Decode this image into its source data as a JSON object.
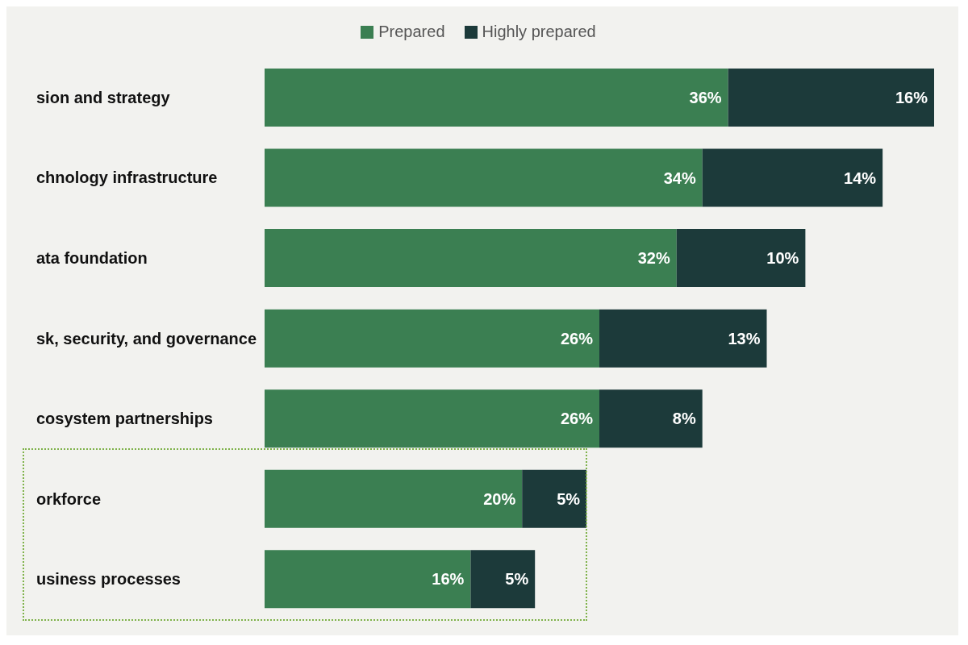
{
  "chart_data": {
    "type": "bar",
    "orientation": "horizontal",
    "stacked": true,
    "legend": "top",
    "categories": [
      "sion and strategy",
      "chnology infrastructure",
      "ata foundation",
      "sk, security, and governance",
      "cosystem partnerships",
      "orkforce",
      "usiness processes"
    ],
    "series": [
      {
        "name": "Prepared",
        "color": "#3b7f52",
        "values": [
          36,
          34,
          32,
          26,
          26,
          20,
          16
        ],
        "value_labels": [
          "36%",
          "34%",
          "32%",
          "26%",
          "26%",
          "20%",
          "16%"
        ]
      },
      {
        "name": "Highly prepared",
        "color": "#1c3a3a",
        "values": [
          16,
          14,
          10,
          13,
          8,
          5,
          5
        ],
        "value_labels": [
          "16%",
          "14%",
          "10%",
          "13%",
          "8%",
          "5%",
          "5%"
        ]
      }
    ]
  }
}
